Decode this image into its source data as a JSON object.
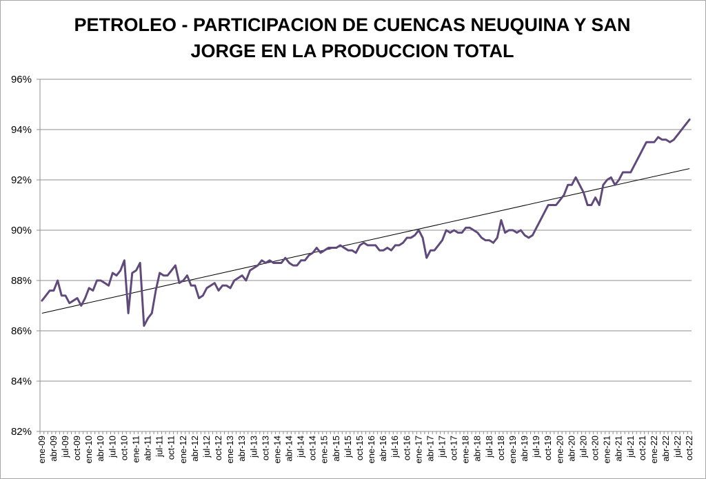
{
  "chart_data": {
    "type": "line",
    "title_line1": "PETROLEO - PARTICIPACION DE CUENCAS NEUQUINA Y SAN",
    "title_line2": "JORGE EN LA PRODUCCION TOTAL",
    "xlabel": "",
    "ylabel": "",
    "ylim": [
      82,
      96
    ],
    "y_ticks": [
      82,
      84,
      86,
      88,
      90,
      92,
      94,
      96
    ],
    "y_tick_labels": [
      "82%",
      "84%",
      "86%",
      "88%",
      "90%",
      "92%",
      "94%",
      "96%"
    ],
    "grid": true,
    "legend": "none",
    "x_tick_labels": [
      "ene-09",
      "abr-09",
      "jul-09",
      "oct-09",
      "ene-10",
      "abr-10",
      "jul-10",
      "oct-10",
      "ene-11",
      "abr-11",
      "jul-11",
      "oct-11",
      "ene-12",
      "abr-12",
      "jul-12",
      "oct-12",
      "ene-13",
      "abr-13",
      "jul-13",
      "oct-13",
      "ene-14",
      "abr-14",
      "jul-14",
      "oct-14",
      "ene-15",
      "abr-15",
      "jul-15",
      "oct-15",
      "ene-16",
      "abr-16",
      "jul-16",
      "oct-16",
      "ene-17",
      "abr-17",
      "jul-17",
      "oct-17",
      "ene-18",
      "abr-18",
      "jul-18",
      "oct-18",
      "ene-19",
      "abr-19",
      "jul-19",
      "oct-19",
      "ene-20",
      "abr-20",
      "jul-20",
      "oct-20",
      "ene-21",
      "abr-21",
      "jul-21",
      "oct-21",
      "ene-22",
      "abr-22",
      "jul-22",
      "oct-22"
    ],
    "series": [
      {
        "color": "#604a7b",
        "values": [
          87.2,
          87.4,
          87.6,
          87.6,
          88.0,
          87.4,
          87.4,
          87.1,
          87.2,
          87.3,
          87.0,
          87.3,
          87.7,
          87.6,
          88.0,
          88.0,
          87.9,
          87.8,
          88.3,
          88.2,
          88.4,
          88.8,
          86.7,
          88.3,
          88.4,
          88.7,
          86.2,
          86.5,
          86.7,
          87.6,
          88.3,
          88.2,
          88.2,
          88.4,
          88.6,
          87.9,
          88.0,
          88.2,
          87.8,
          87.8,
          87.3,
          87.4,
          87.7,
          87.8,
          87.9,
          87.6,
          87.8,
          87.8,
          87.7,
          88.0,
          88.1,
          88.2,
          88.0,
          88.4,
          88.5,
          88.6,
          88.8,
          88.7,
          88.8,
          88.7,
          88.7,
          88.7,
          88.9,
          88.7,
          88.6,
          88.6,
          88.8,
          88.8,
          89.0,
          89.1,
          89.3,
          89.1,
          89.2,
          89.3,
          89.3,
          89.3,
          89.4,
          89.3,
          89.2,
          89.2,
          89.1,
          89.4,
          89.5,
          89.4,
          89.4,
          89.4,
          89.2,
          89.2,
          89.3,
          89.2,
          89.4,
          89.4,
          89.5,
          89.7,
          89.7,
          89.8,
          90.0,
          89.7,
          88.9,
          89.2,
          89.2,
          89.4,
          89.6,
          90.0,
          89.9,
          90.0,
          89.9,
          89.9,
          90.1,
          90.1,
          90.0,
          89.9,
          89.7,
          89.6,
          89.6,
          89.5,
          89.7,
          90.4,
          89.9,
          90.0,
          90.0,
          89.9,
          90.0,
          89.8,
          89.7,
          89.8,
          90.1,
          90.4,
          90.7,
          91.0,
          91.0,
          91.0,
          91.2,
          91.4,
          91.8,
          91.8,
          92.1,
          91.8,
          91.5,
          91.0,
          91.0,
          91.3,
          91.0,
          91.8,
          92.0,
          92.1,
          91.8,
          92.0,
          92.3,
          92.3,
          92.3,
          92.6,
          92.9,
          93.2,
          93.5,
          93.5,
          93.5,
          93.7,
          93.6,
          93.6,
          93.5,
          93.6,
          93.8,
          94.0,
          94.2,
          94.4
        ]
      }
    ],
    "trendline": {
      "color": "#000000",
      "start": 86.7,
      "end": 92.45
    }
  }
}
